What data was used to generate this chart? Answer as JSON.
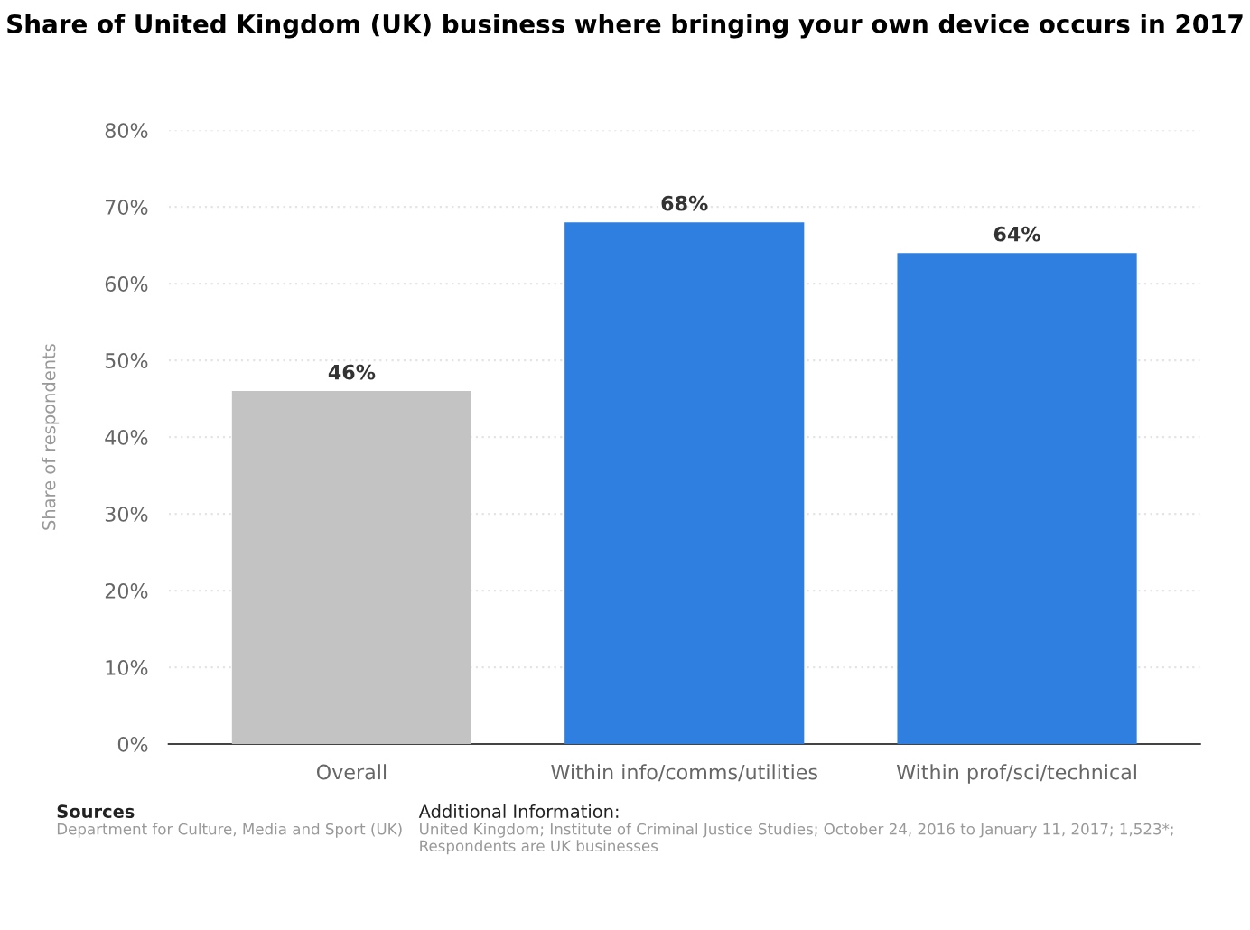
{
  "chart_data": {
    "type": "bar",
    "title": "Share of United Kingdom (UK) business where bringing your own device occurs in 2017",
    "ylabel": "Share of respondents",
    "categories": [
      "Overall",
      "Within info/comms/utilities",
      "Within prof/sci/technical"
    ],
    "values": [
      46,
      68,
      64
    ],
    "colors": [
      "#c3c3c3",
      "#2f7fe0",
      "#2f7fe0"
    ],
    "value_labels": [
      "46%",
      "68%",
      "64%"
    ],
    "ylim": [
      0,
      80
    ],
    "yticks": [
      {
        "value": 0,
        "label": "0%"
      },
      {
        "value": 10,
        "label": "10%"
      },
      {
        "value": 20,
        "label": "20%"
      },
      {
        "value": 30,
        "label": "30%"
      },
      {
        "value": 40,
        "label": "40%"
      },
      {
        "value": 50,
        "label": "50%"
      },
      {
        "value": 60,
        "label": "60%"
      },
      {
        "value": 70,
        "label": "70%"
      },
      {
        "value": 80,
        "label": "80%"
      }
    ],
    "grid": "y",
    "annotations": [
      "Sources",
      "Department for Culture, Media and Sport (UK)",
      "Additional Information:",
      "United Kingdom; Institute of Criminal Justice Studies; October 24, 2016 to January 11, 2017; 1,523*; Respondents are UK businesses"
    ]
  }
}
